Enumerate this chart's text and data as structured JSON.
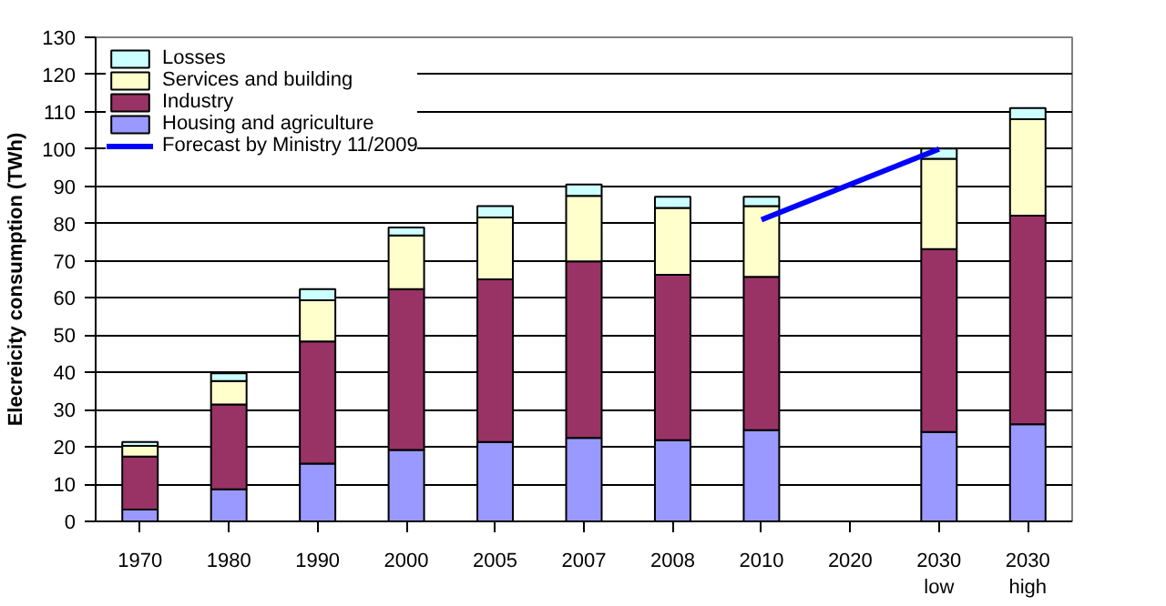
{
  "chart_data": {
    "type": "bar",
    "stacked": true,
    "ylabel": "Elecreicity consumption (TWh)",
    "categories": [
      "1970",
      "1980",
      "1990",
      "2000",
      "2005",
      "2007",
      "2008",
      "2010",
      "2020",
      "2030\nlow",
      "2030\nhigh"
    ],
    "series": [
      {
        "name": "Housing and agriculture",
        "color": "#9999ff",
        "values": [
          3.2,
          8.6,
          15.5,
          19.2,
          21.3,
          22.4,
          21.8,
          24.5,
          null,
          24.0,
          26.1
        ]
      },
      {
        "name": "Industry",
        "color": "#993366",
        "values": [
          14.2,
          22.8,
          32.8,
          43.2,
          43.7,
          47.4,
          44.4,
          41.2,
          null,
          49.1,
          56.0
        ]
      },
      {
        "name": "Services and building",
        "color": "#ffffcc",
        "values": [
          2.9,
          6.3,
          11.1,
          14.4,
          16.6,
          17.6,
          18.0,
          19.0,
          null,
          24.3,
          25.9
        ]
      },
      {
        "name": "Losses",
        "color": "#ccffff",
        "values": [
          1.0,
          2.1,
          3.0,
          2.1,
          3.1,
          3.1,
          3.0,
          2.5,
          null,
          2.7,
          3.0
        ]
      },
      {
        "name": "Forecast by Ministry 11/2009",
        "type": "line",
        "color": "#0000ff",
        "values": [
          null,
          null,
          null,
          null,
          null,
          null,
          null,
          81,
          null,
          100,
          null
        ]
      }
    ],
    "ylim": [
      0,
      130
    ],
    "yticks": [
      0,
      10,
      20,
      30,
      40,
      50,
      60,
      70,
      80,
      90,
      100,
      110,
      120,
      130
    ],
    "grid": "y",
    "legend": "top left"
  }
}
